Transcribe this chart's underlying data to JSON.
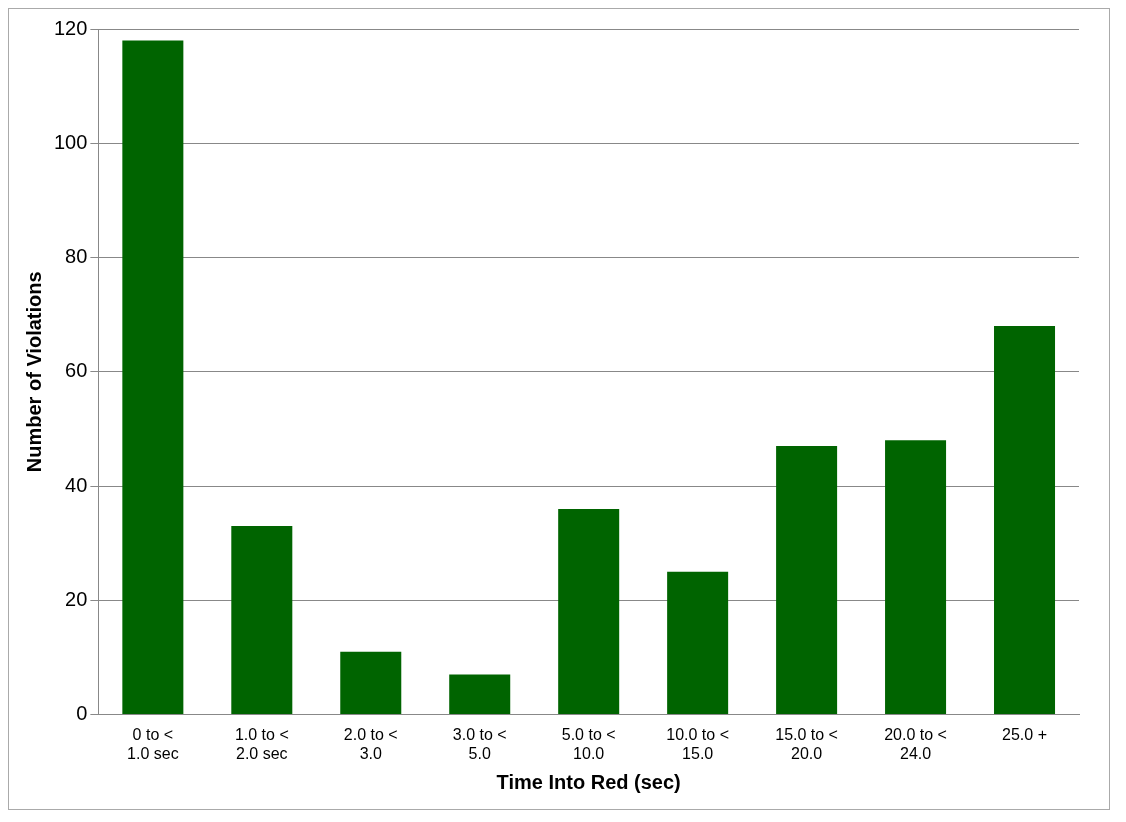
{
  "chart_data": {
    "type": "bar",
    "xlabel": "Time Into Red (sec)",
    "ylabel": "Number of Violations",
    "categories": [
      "0 to < 1.0 sec",
      "1.0 to < 2.0 sec",
      "2.0 to < 3.0",
      "3.0 to < 5.0",
      "5.0 to < 10.0",
      "10.0 to < 15.0",
      "15.0 to < 20.0",
      "20.0 to < 24.0",
      "25.0 +"
    ],
    "values": [
      118,
      33,
      11,
      7,
      36,
      25,
      47,
      48,
      68
    ],
    "color": "#006400",
    "ylim": [
      0,
      120
    ],
    "yticks": [
      0,
      20,
      40,
      60,
      80,
      100,
      120
    ],
    "grid": "y",
    "legend": false
  }
}
